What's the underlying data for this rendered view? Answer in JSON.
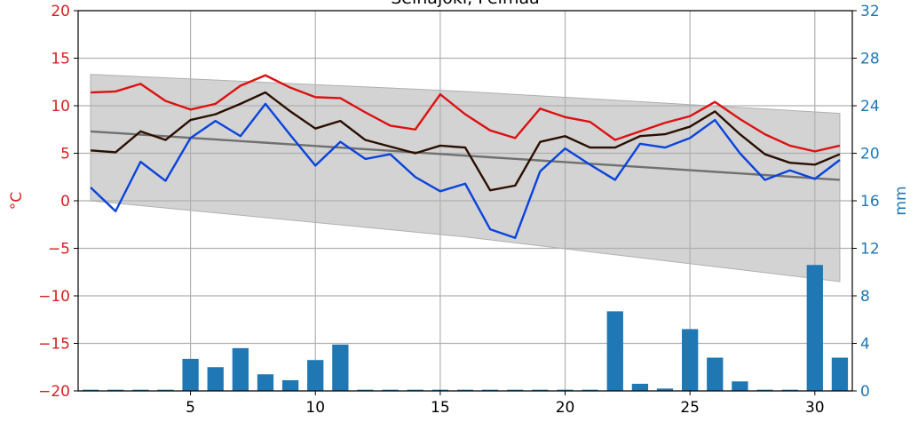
{
  "chart_data": {
    "type": "line",
    "title": "Seinäjoki, Pelmaa",
    "ylabel": "°C",
    "y2label": "mm",
    "x": [
      1,
      2,
      3,
      4,
      5,
      6,
      7,
      8,
      9,
      10,
      11,
      12,
      13,
      14,
      15,
      16,
      17,
      18,
      19,
      20,
      21,
      22,
      23,
      24,
      25,
      26,
      27,
      28,
      29,
      30,
      31
    ],
    "xlim": [
      0.5,
      31.5
    ],
    "xticks": [
      5,
      10,
      15,
      20,
      25,
      30
    ],
    "ylim": [
      -20,
      20
    ],
    "yticks": [
      {
        "value": -20,
        "label": "−20"
      },
      {
        "value": -15,
        "label": "−15"
      },
      {
        "value": -10,
        "label": "−10"
      },
      {
        "value": -5,
        "label": "−5"
      },
      0,
      5,
      10,
      15,
      20
    ],
    "y2lim": [
      0,
      32
    ],
    "y2ticks": [
      0,
      4,
      8,
      12,
      16,
      20,
      24,
      28,
      32
    ],
    "grid": true,
    "ycolor": "#d62020",
    "y2color": "#1f77b4",
    "band": {
      "x": [
        1,
        16,
        31
      ],
      "upper": [
        13.3,
        11.5,
        9.2
      ],
      "lower": [
        0,
        -3.8,
        -8.5
      ],
      "color": "#d3d3d3"
    },
    "series": [
      {
        "type": "bar",
        "axis": "y2",
        "color": "#1f77b4",
        "values": [
          0.1,
          0.1,
          0.1,
          0.1,
          2.7,
          2.0,
          3.6,
          1.4,
          0.9,
          2.6,
          3.9,
          0.1,
          0.1,
          0.1,
          0.1,
          0.1,
          0.1,
          0.1,
          0.1,
          0.1,
          0.1,
          6.7,
          0.6,
          0.2,
          5.2,
          2.8,
          0.8,
          0.1,
          0.1,
          10.6,
          2.8
        ]
      },
      {
        "type": "line",
        "color": "#707070",
        "values": [
          7.3,
          7.13,
          6.96,
          6.79,
          6.62,
          6.45,
          6.28,
          6.11,
          5.94,
          5.77,
          5.6,
          5.43,
          5.26,
          5.09,
          4.92,
          4.75,
          4.58,
          4.41,
          4.24,
          4.07,
          3.9,
          3.73,
          3.56,
          3.39,
          3.22,
          3.05,
          2.88,
          2.71,
          2.54,
          2.37,
          2.2
        ]
      },
      {
        "type": "line",
        "color": "#dd1111",
        "values": [
          11.4,
          11.5,
          12.3,
          10.5,
          9.6,
          10.2,
          12.1,
          13.2,
          11.9,
          10.9,
          10.8,
          9.3,
          7.9,
          7.5,
          11.2,
          9.1,
          7.4,
          6.6,
          9.7,
          8.8,
          8.3,
          6.4,
          7.3,
          8.2,
          8.9,
          10.4,
          8.6,
          7.0,
          5.8,
          5.2,
          5.8
        ]
      },
      {
        "type": "line",
        "color": "#2b0f00",
        "values": [
          5.3,
          5.1,
          7.3,
          6.4,
          8.5,
          9.1,
          10.2,
          11.4,
          9.4,
          7.6,
          8.4,
          6.4,
          5.7,
          5.0,
          5.8,
          5.6,
          1.1,
          1.6,
          6.2,
          6.8,
          5.6,
          5.6,
          6.8,
          7.0,
          7.8,
          9.4,
          7.0,
          4.9,
          4.0,
          3.8,
          4.9
        ]
      },
      {
        "type": "line",
        "color": "#0a44dd",
        "values": [
          1.4,
          -1.1,
          4.1,
          2.1,
          6.6,
          8.4,
          6.8,
          10.2,
          6.9,
          3.7,
          6.2,
          4.4,
          4.9,
          2.5,
          1.0,
          1.8,
          -3.0,
          -3.9,
          3.1,
          5.5,
          3.8,
          2.2,
          6.0,
          5.6,
          6.6,
          8.5,
          5.0,
          2.2,
          3.2,
          2.3,
          4.3
        ]
      }
    ]
  }
}
